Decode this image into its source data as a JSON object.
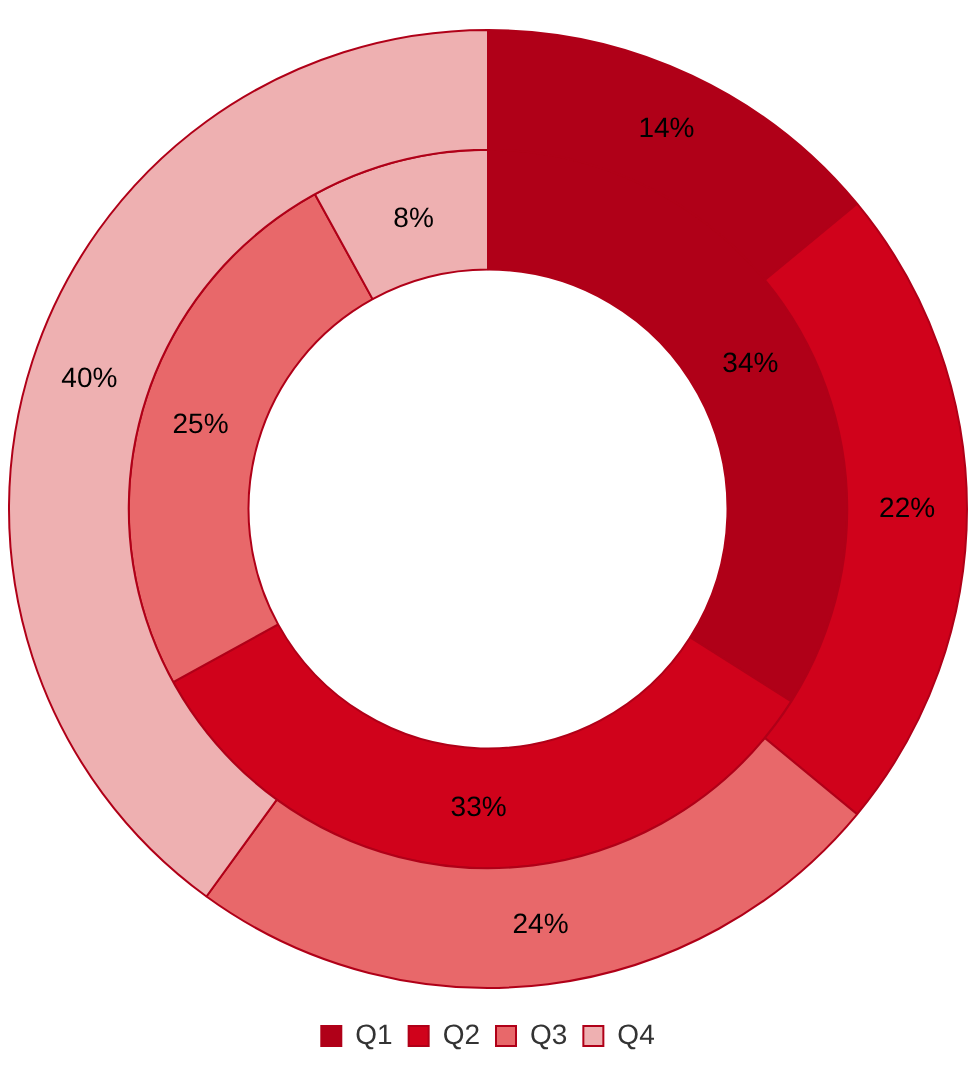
{
  "chart_data": {
    "type": "donut",
    "categories": [
      "Q1",
      "Q2",
      "Q3",
      "Q4"
    ],
    "colors": [
      "#b00018",
      "#d0021b",
      "#e8686a",
      "#eeb0b1"
    ],
    "legend": "bottom",
    "series": [
      {
        "values": [
          14,
          22,
          24,
          40
        ],
        "value_labels": [
          "14%",
          "22%",
          "24%",
          "40%"
        ]
      },
      {
        "values": [
          34,
          33,
          25,
          8
        ],
        "value_labels": [
          "34%",
          "33%",
          "25%",
          "8%"
        ]
      }
    ]
  }
}
